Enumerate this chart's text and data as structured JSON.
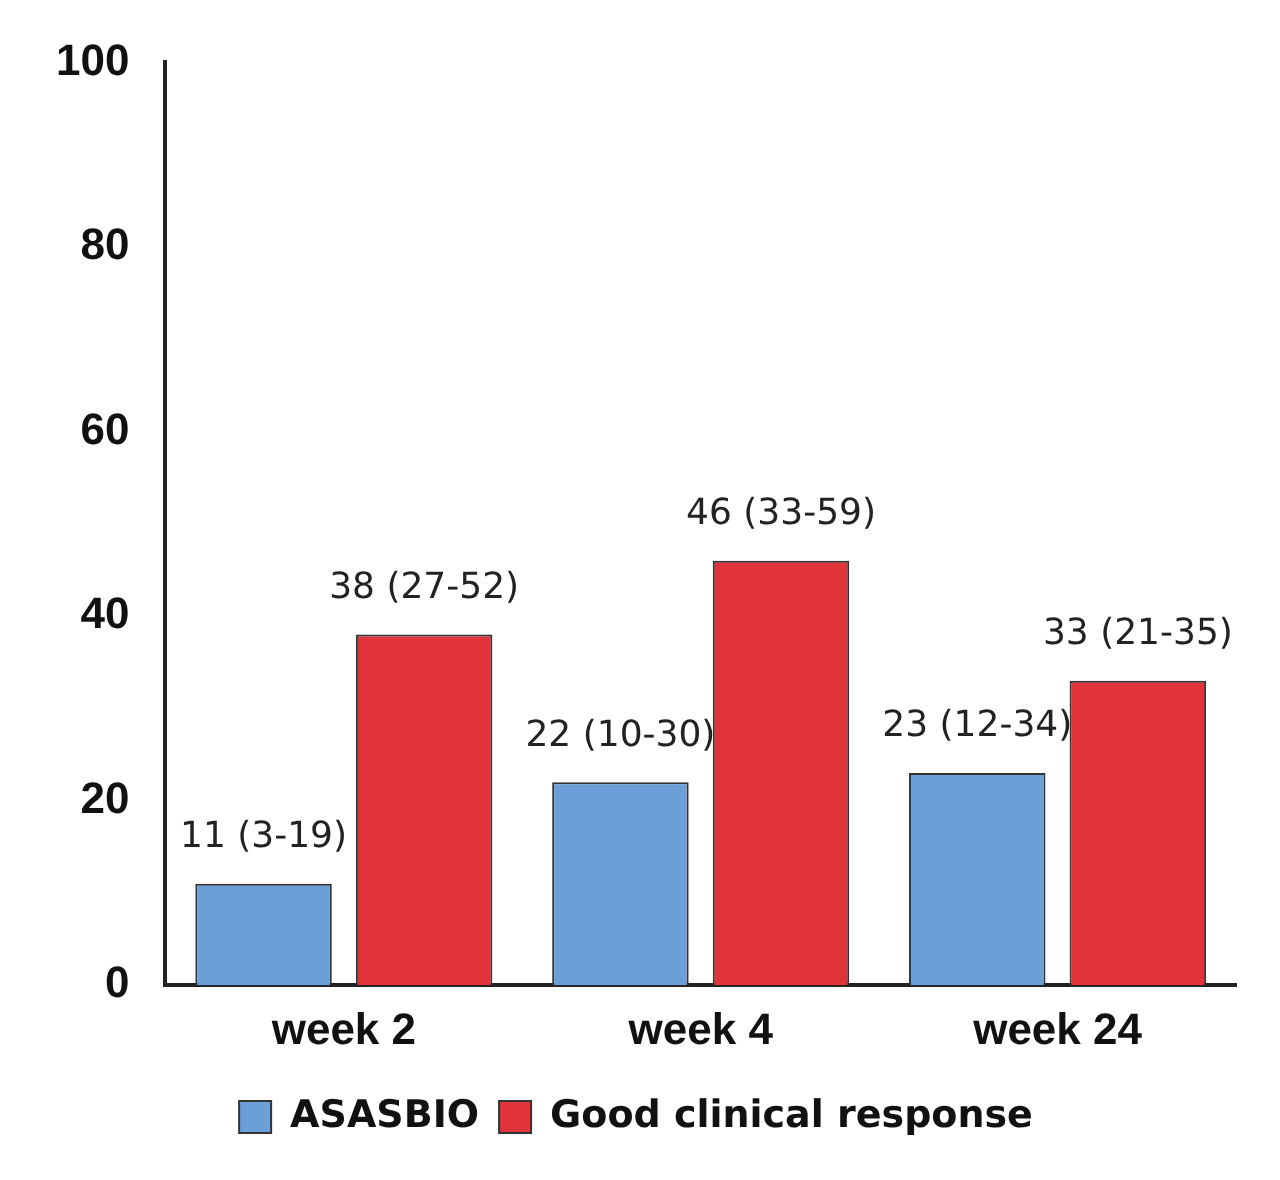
{
  "chart_data": {
    "type": "bar",
    "categories": [
      "week 2",
      "week 4",
      "week 24"
    ],
    "series": [
      {
        "name": "ASASBIO",
        "color": "#6a9fd8",
        "values": [
          11,
          22,
          23
        ],
        "value_labels": [
          "11 (3-19)",
          "22 (10-30)",
          "23 (12-34)"
        ]
      },
      {
        "name": "Good clinical response",
        "color": "#e0333a",
        "values": [
          38,
          46,
          33
        ],
        "value_labels": [
          "38 (27-52)",
          "46 (33-59)",
          "33 (21-35)"
        ]
      }
    ],
    "ylim": [
      0,
      100
    ],
    "yticks": [
      0,
      20,
      40,
      60,
      80,
      100
    ],
    "grid": false,
    "legend": "bottom"
  }
}
